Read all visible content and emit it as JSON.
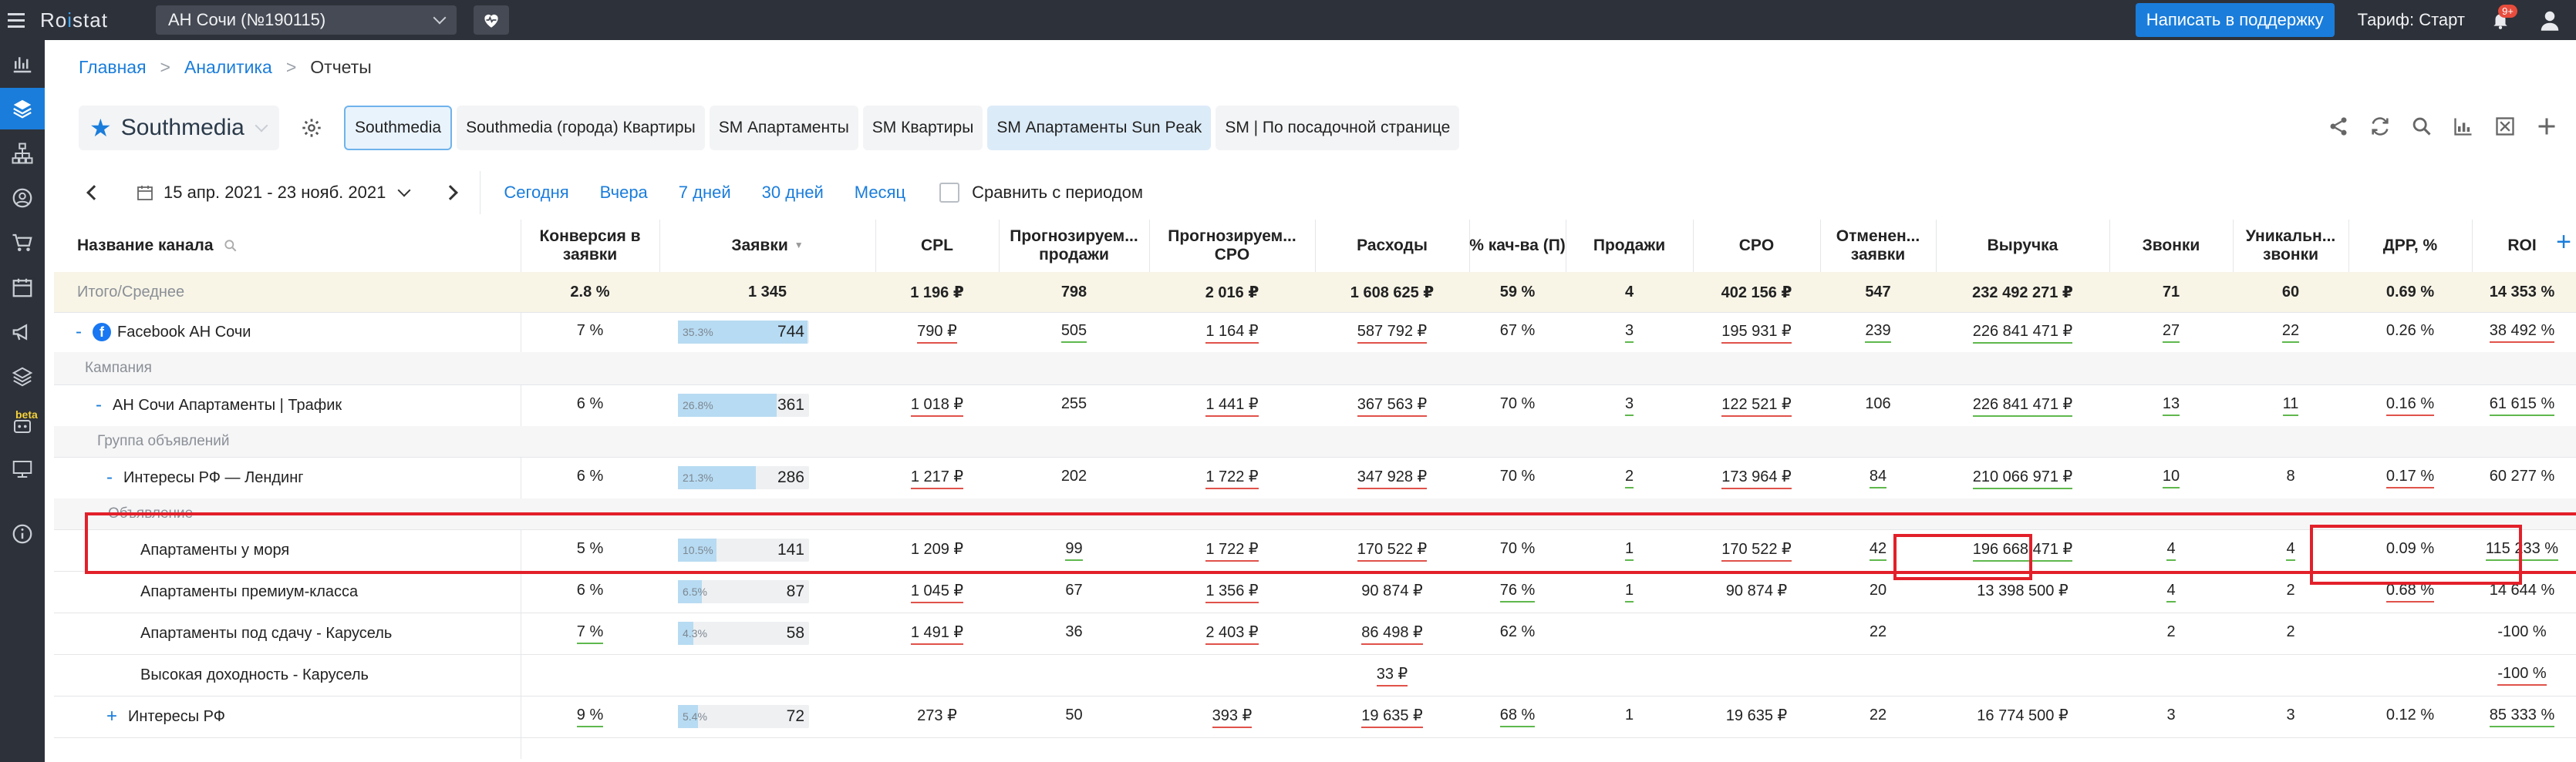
{
  "topbar": {
    "logo_prefix": "Ro",
    "logo_accent": "i",
    "logo_suffix": "stat",
    "project": "АН Сочи (№190115)",
    "support_label": "Написать в поддержку",
    "tariff": "Тариф: Старт",
    "notifications": "9+"
  },
  "breadcrumb": {
    "home": "Главная",
    "analytics": "Аналитика",
    "current": "Отчеты"
  },
  "report": {
    "name": "Southmedia",
    "tabs": [
      "Southmedia",
      "Southmedia (города) Квартиры",
      "SM Апартаменты",
      "SM Квартиры",
      "SM Апартаменты Sun Peak",
      "SM | По посадочной странице"
    ]
  },
  "datebar": {
    "range": "15 апр. 2021 - 23 нояб. 2021",
    "quick": [
      "Сегодня",
      "Вчера",
      "7 дней",
      "30 дней",
      "Месяц"
    ],
    "compare": "Сравнить с периодом"
  },
  "sidebar_beta": "beta",
  "columns": [
    "Название канала",
    "Конверсия в заявки",
    "Заявки",
    "CPL",
    "Прогнозируем... продажи",
    "Прогнозируем... CPO",
    "Расходы",
    "% кач-ва (П)",
    "Продажи",
    "CPO",
    "Отменен... заявки",
    "Выручка",
    "Звонки",
    "Уникальн... звонки",
    "ДРР, %",
    "ROI"
  ],
  "sort_marker": "▼",
  "total": {
    "title": "Итого/Среднее",
    "values": [
      "2.8 %",
      "1 345",
      "1 196 ₽",
      "798",
      "2 016 ₽",
      "1 608 625 ₽",
      "59 %",
      "4",
      "402 156 ₽",
      "547",
      "232 492 271 ₽",
      "71",
      "60",
      "0.69 %",
      "14 353 %"
    ]
  },
  "groups": {
    "campaign": "Кампания",
    "adgroup": "Группа объявлений",
    "ad": "Объявление"
  },
  "rows": [
    {
      "toggle": "-",
      "name": "Facebook АН Сочи",
      "conv": "7 %",
      "bar_pct": "35.3%",
      "bar_frac": 0.353,
      "leads": "744",
      "cpl": "790 ₽",
      "fsales": "505",
      "fcpo": "1 164 ₽",
      "spend": "587 792 ₽",
      "qual": "67 %",
      "sales": "3",
      "cpo": "195 931 ₽",
      "cancel": "239",
      "revenue": "226 841 471 ₽",
      "calls": "27",
      "ucalls": "22",
      "drr": "0.26 %",
      "roi": "38 492 %"
    },
    {
      "toggle": "-",
      "name": "АН Сочи Апартаменты | Трафик",
      "conv": "6 %",
      "bar_pct": "26.8%",
      "bar_frac": 0.268,
      "leads": "361",
      "cpl": "1 018 ₽",
      "fsales": "255",
      "fcpo": "1 441 ₽",
      "spend": "367 563 ₽",
      "qual": "70 %",
      "sales": "3",
      "cpo": "122 521 ₽",
      "cancel": "106",
      "revenue": "226 841 471 ₽",
      "calls": "13",
      "ucalls": "11",
      "drr": "0.16 %",
      "roi": "61 615 %"
    },
    {
      "toggle": "-",
      "name": "Интересы РФ — Лендинг",
      "conv": "6 %",
      "bar_pct": "21.3%",
      "bar_frac": 0.213,
      "leads": "286",
      "cpl": "1 217 ₽",
      "fsales": "202",
      "fcpo": "1 722 ₽",
      "spend": "347 928 ₽",
      "qual": "70 %",
      "sales": "2",
      "cpo": "173 964 ₽",
      "cancel": "84",
      "revenue": "210 066 971 ₽",
      "calls": "10",
      "ucalls": "8",
      "drr": "0.17 %",
      "roi": "60 277 %"
    },
    {
      "toggle": "",
      "name": "Апартаменты у моря",
      "conv": "5 %",
      "bar_pct": "10.5%",
      "bar_frac": 0.105,
      "leads": "141",
      "cpl": "1 209 ₽",
      "fsales": "99",
      "fcpo": "1 722 ₽",
      "spend": "170 522 ₽",
      "qual": "70 %",
      "sales": "1",
      "cpo": "170 522 ₽",
      "cancel": "42",
      "revenue": "196 668 471 ₽",
      "calls": "4",
      "ucalls": "4",
      "drr": "0.09 %",
      "roi": "115 233 %"
    },
    {
      "toggle": "",
      "name": "Апартаменты премиум-класса",
      "conv": "6 %",
      "bar_pct": "6.5%",
      "bar_frac": 0.065,
      "leads": "87",
      "cpl": "1 045 ₽",
      "fsales": "67",
      "fcpo": "1 356 ₽",
      "spend": "90 874 ₽",
      "qual": "76 %",
      "sales": "1",
      "cpo": "90 874 ₽",
      "cancel": "20",
      "revenue": "13 398 500 ₽",
      "calls": "4",
      "ucalls": "2",
      "drr": "0.68 %",
      "roi": "14 644 %"
    },
    {
      "toggle": "",
      "name": "Апартаменты под сдачу - Карусель",
      "conv": "7 %",
      "bar_pct": "4.3%",
      "bar_frac": 0.043,
      "leads": "58",
      "cpl": "1 491 ₽",
      "fsales": "36",
      "fcpo": "2 403 ₽",
      "spend": "86 498 ₽",
      "qual": "62 %",
      "sales": "",
      "cpo": "",
      "cancel": "22",
      "revenue": "",
      "calls": "2",
      "ucalls": "2",
      "drr": "",
      "roi": "-100 %"
    },
    {
      "toggle": "",
      "name": "Высокая доходность - Карусель",
      "conv": "",
      "bar_pct": "",
      "bar_frac": 0,
      "leads": "",
      "cpl": "",
      "fsales": "",
      "fcpo": "",
      "spend": "33 ₽",
      "qual": "",
      "sales": "",
      "cpo": "",
      "cancel": "",
      "revenue": "",
      "calls": "",
      "ucalls": "",
      "drr": "",
      "roi": "-100 %"
    },
    {
      "toggle": "+",
      "name": "Интересы РФ",
      "conv": "9 %",
      "bar_pct": "5.4%",
      "bar_frac": 0.054,
      "leads": "72",
      "cpl": "273 ₽",
      "fsales": "50",
      "fcpo": "393 ₽",
      "spend": "19 635 ₽",
      "qual": "68 %",
      "sales": "1",
      "cpo": "19 635 ₽",
      "cancel": "22",
      "revenue": "16 774 500 ₽",
      "calls": "3",
      "ucalls": "3",
      "drr": "0.12 %",
      "roi": "85 333 %"
    }
  ],
  "colors": {
    "accent": "#1a7ddb",
    "topbar": "#2d3139",
    "underline_red": "#e0524a",
    "underline_green": "#5fb84d",
    "bar_fill": "#b7dbf2",
    "highlight_box": "#e2202a"
  }
}
